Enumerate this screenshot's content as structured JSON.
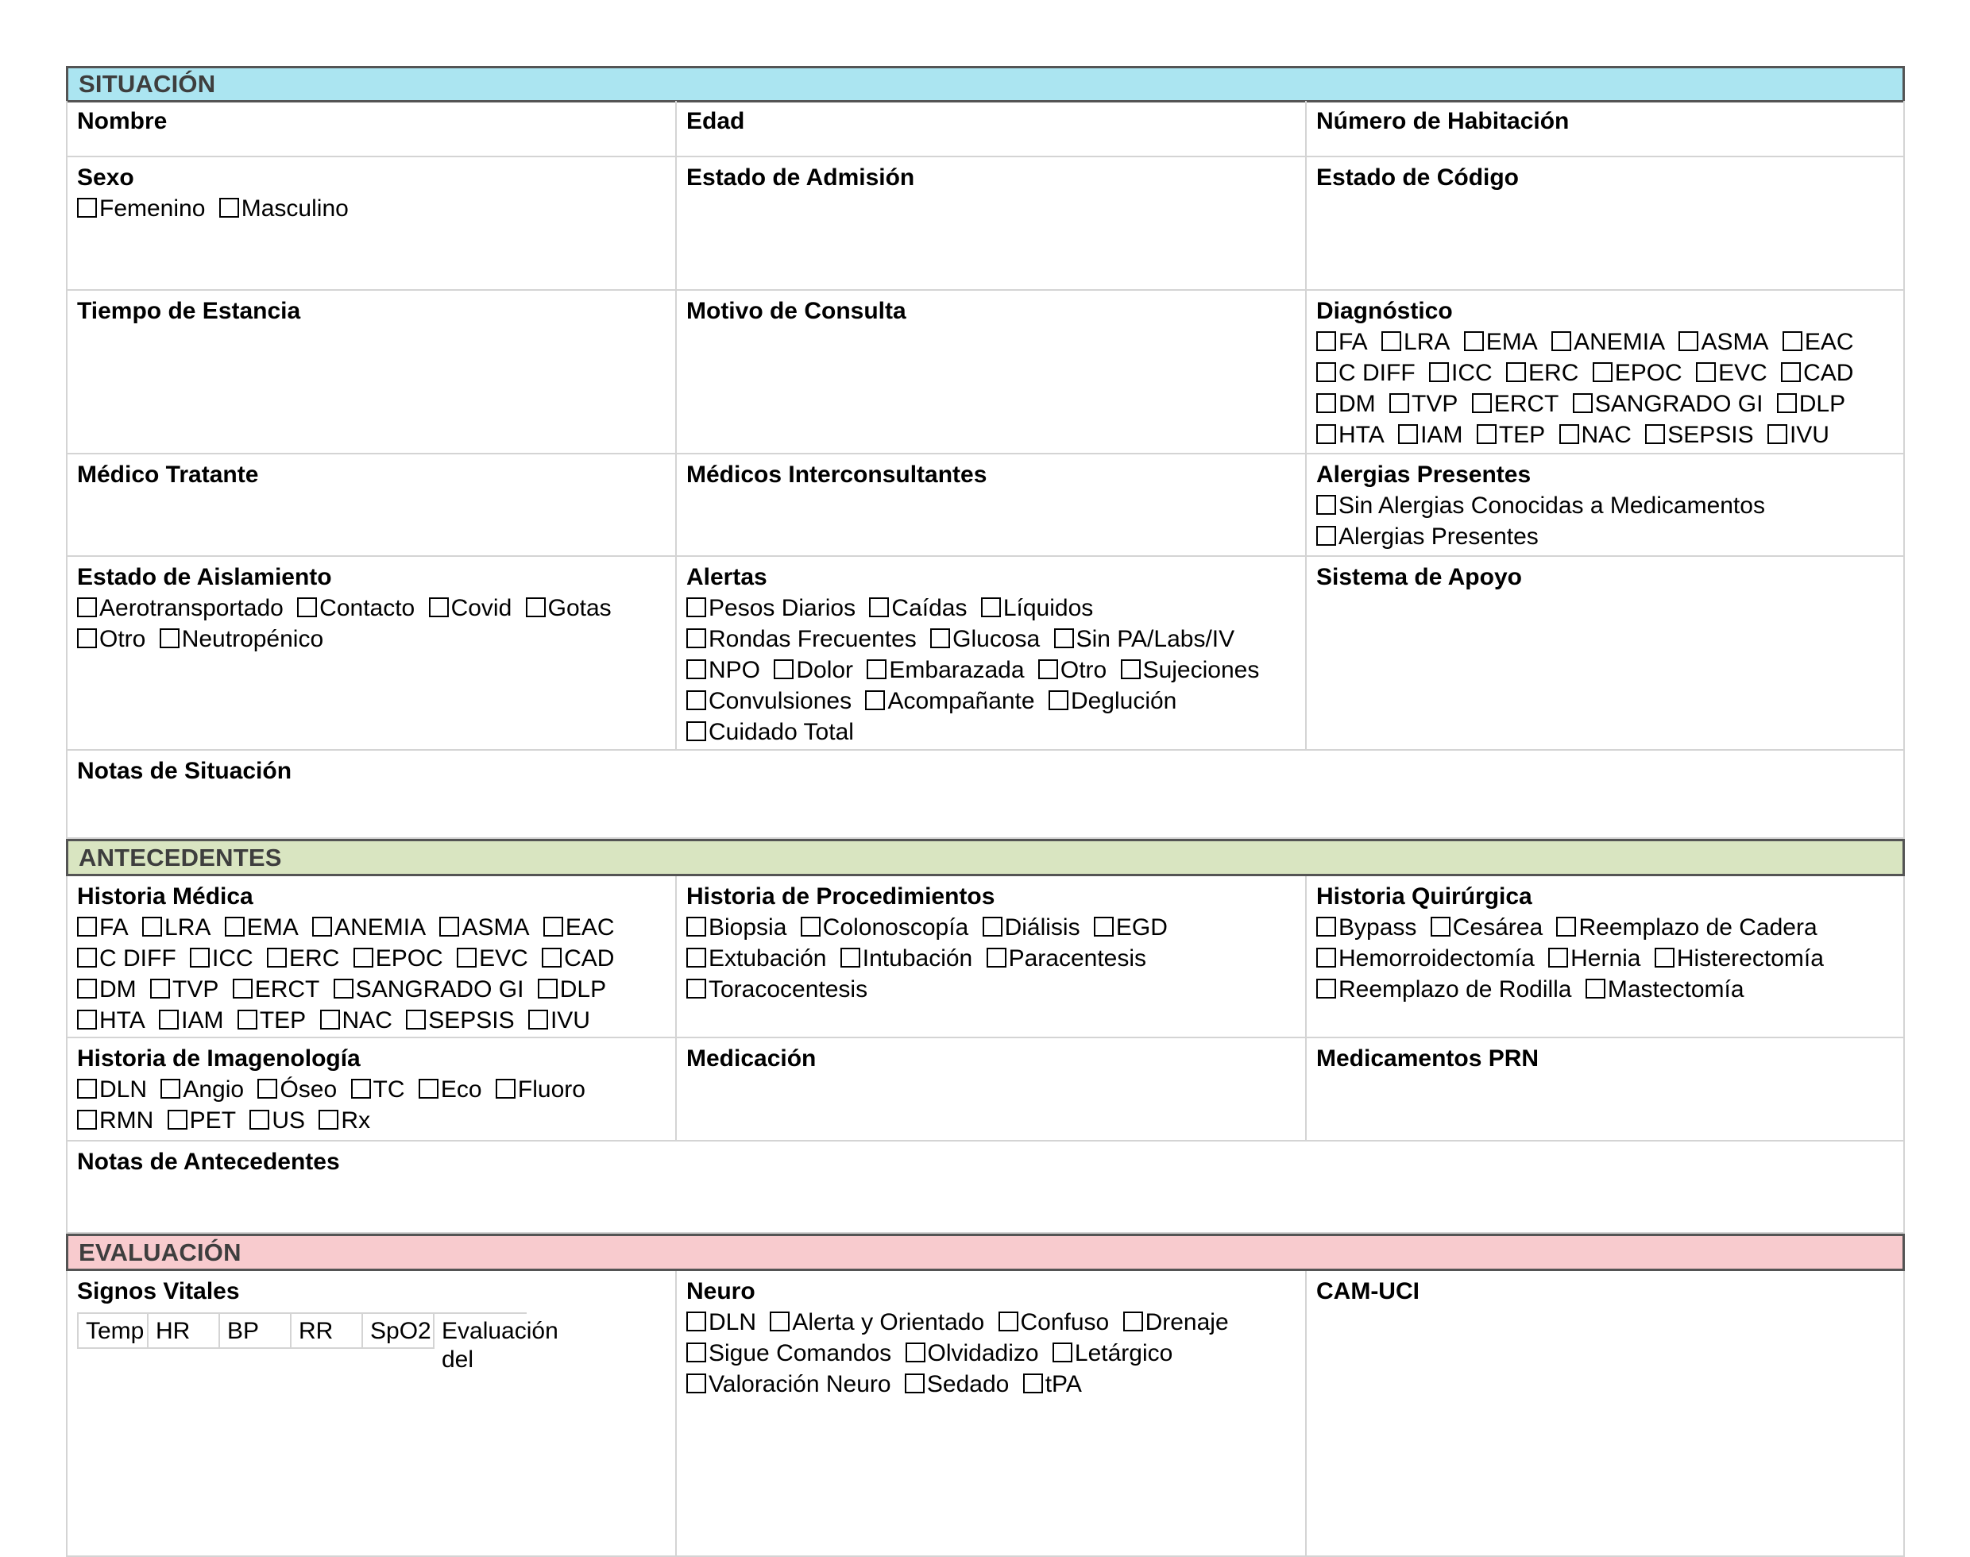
{
  "colors": {
    "situacion_header": "#abe5f1",
    "antecedentes_header": "#d9e5c1",
    "evaluacion_header": "#f8cbce",
    "section_border": "#545454",
    "cell_border": "#d4d4d4"
  },
  "situacion": {
    "title": "SITUACIÓN",
    "nombre": {
      "label": "Nombre"
    },
    "edad": {
      "label": "Edad"
    },
    "numero_habitacion": {
      "label": "Número de Habitación"
    },
    "sexo": {
      "label": "Sexo",
      "options": [
        "Femenino",
        "Masculino"
      ]
    },
    "estado_admision": {
      "label": "Estado de Admisión"
    },
    "estado_codigo": {
      "label": "Estado de Código"
    },
    "tiempo_estancia": {
      "label": "Tiempo de Estancia"
    },
    "motivo_consulta": {
      "label": "Motivo de Consulta"
    },
    "diagnostico": {
      "label": "Diagnóstico",
      "options": [
        "FA",
        "LRA",
        "EMA",
        "ANEMIA",
        "ASMA",
        "EAC",
        "C DIFF",
        "ICC",
        "ERC",
        "EPOC",
        "EVC",
        "CAD",
        "DM",
        "TVP",
        "ERCT",
        "SANGRADO GI",
        "DLP",
        "HTA",
        "IAM",
        "TEP",
        "NAC",
        "SEPSIS",
        "IVU"
      ]
    },
    "medico_tratante": {
      "label": "Médico Tratante"
    },
    "medicos_interconsultantes": {
      "label": "Médicos Interconsultantes"
    },
    "alergias_presentes": {
      "label": "Alergias Presentes",
      "options": [
        "Sin Alergias Conocidas a Medicamentos",
        "Alergias Presentes"
      ]
    },
    "estado_aislamiento": {
      "label": "Estado de Aislamiento",
      "options": [
        "Aerotransportado",
        "Contacto",
        "Covid",
        "Gotas",
        "Otro",
        "Neutropénico"
      ]
    },
    "alertas": {
      "label": "Alertas",
      "options": [
        "Pesos Diarios",
        "Caídas",
        "Líquidos",
        "Rondas Frecuentes",
        "Glucosa",
        "Sin PA/Labs/IV",
        "NPO",
        "Dolor",
        "Embarazada",
        "Otro",
        "Sujeciones",
        "Convulsiones",
        "Acompañante",
        "Deglución",
        "Cuidado Total"
      ]
    },
    "sistema_apoyo": {
      "label": "Sistema de Apoyo"
    },
    "notas": {
      "label": "Notas de Situación"
    }
  },
  "antecedentes": {
    "title": "ANTECEDENTES",
    "historia_medica": {
      "label": "Historia Médica",
      "options": [
        "FA",
        "LRA",
        "EMA",
        "ANEMIA",
        "ASMA",
        "EAC",
        "C DIFF",
        "ICC",
        "ERC",
        "EPOC",
        "EVC",
        "CAD",
        "DM",
        "TVP",
        "ERCT",
        "SANGRADO GI",
        "DLP",
        "HTA",
        "IAM",
        "TEP",
        "NAC",
        "SEPSIS",
        "IVU"
      ]
    },
    "historia_procedimientos": {
      "label": "Historia de Procedimientos",
      "options": [
        "Biopsia",
        "Colonoscopía",
        "Diálisis",
        "EGD",
        "Extubación",
        "Intubación",
        "Paracentesis",
        "Toracocentesis"
      ]
    },
    "historia_quirurgica": {
      "label": "Historia Quirúrgica",
      "options": [
        "Bypass",
        "Cesárea",
        "Reemplazo de Cadera",
        "Hemorroidectomía",
        "Hernia",
        "Histerectomía",
        "Reemplazo de Rodilla",
        "Mastectomía"
      ]
    },
    "historia_imagenologia": {
      "label": "Historia de Imagenología",
      "options": [
        "DLN",
        "Angio",
        "Óseo",
        "TC",
        "Eco",
        "Fluoro",
        "RMN",
        "PET",
        "US",
        "Rx"
      ]
    },
    "medicacion": {
      "label": "Medicación"
    },
    "medicamentos_prn": {
      "label": "Medicamentos PRN"
    },
    "notas": {
      "label": "Notas de Antecedentes"
    }
  },
  "evaluacion": {
    "title": "EVALUACIÓN",
    "signos_vitales": {
      "label": "Signos Vitales",
      "columns": [
        "Temp",
        "HR",
        "BP",
        "RR",
        "SpO2",
        "Evaluación del"
      ]
    },
    "neuro": {
      "label": "Neuro",
      "options": [
        "DLN",
        "Alerta y Orientado",
        "Confuso",
        "Drenaje",
        "Sigue Comandos",
        "Olvidadizo",
        "Letárgico",
        "Valoración Neuro",
        "Sedado",
        "tPA"
      ]
    },
    "cam_uci": {
      "label": "CAM-UCI"
    }
  }
}
